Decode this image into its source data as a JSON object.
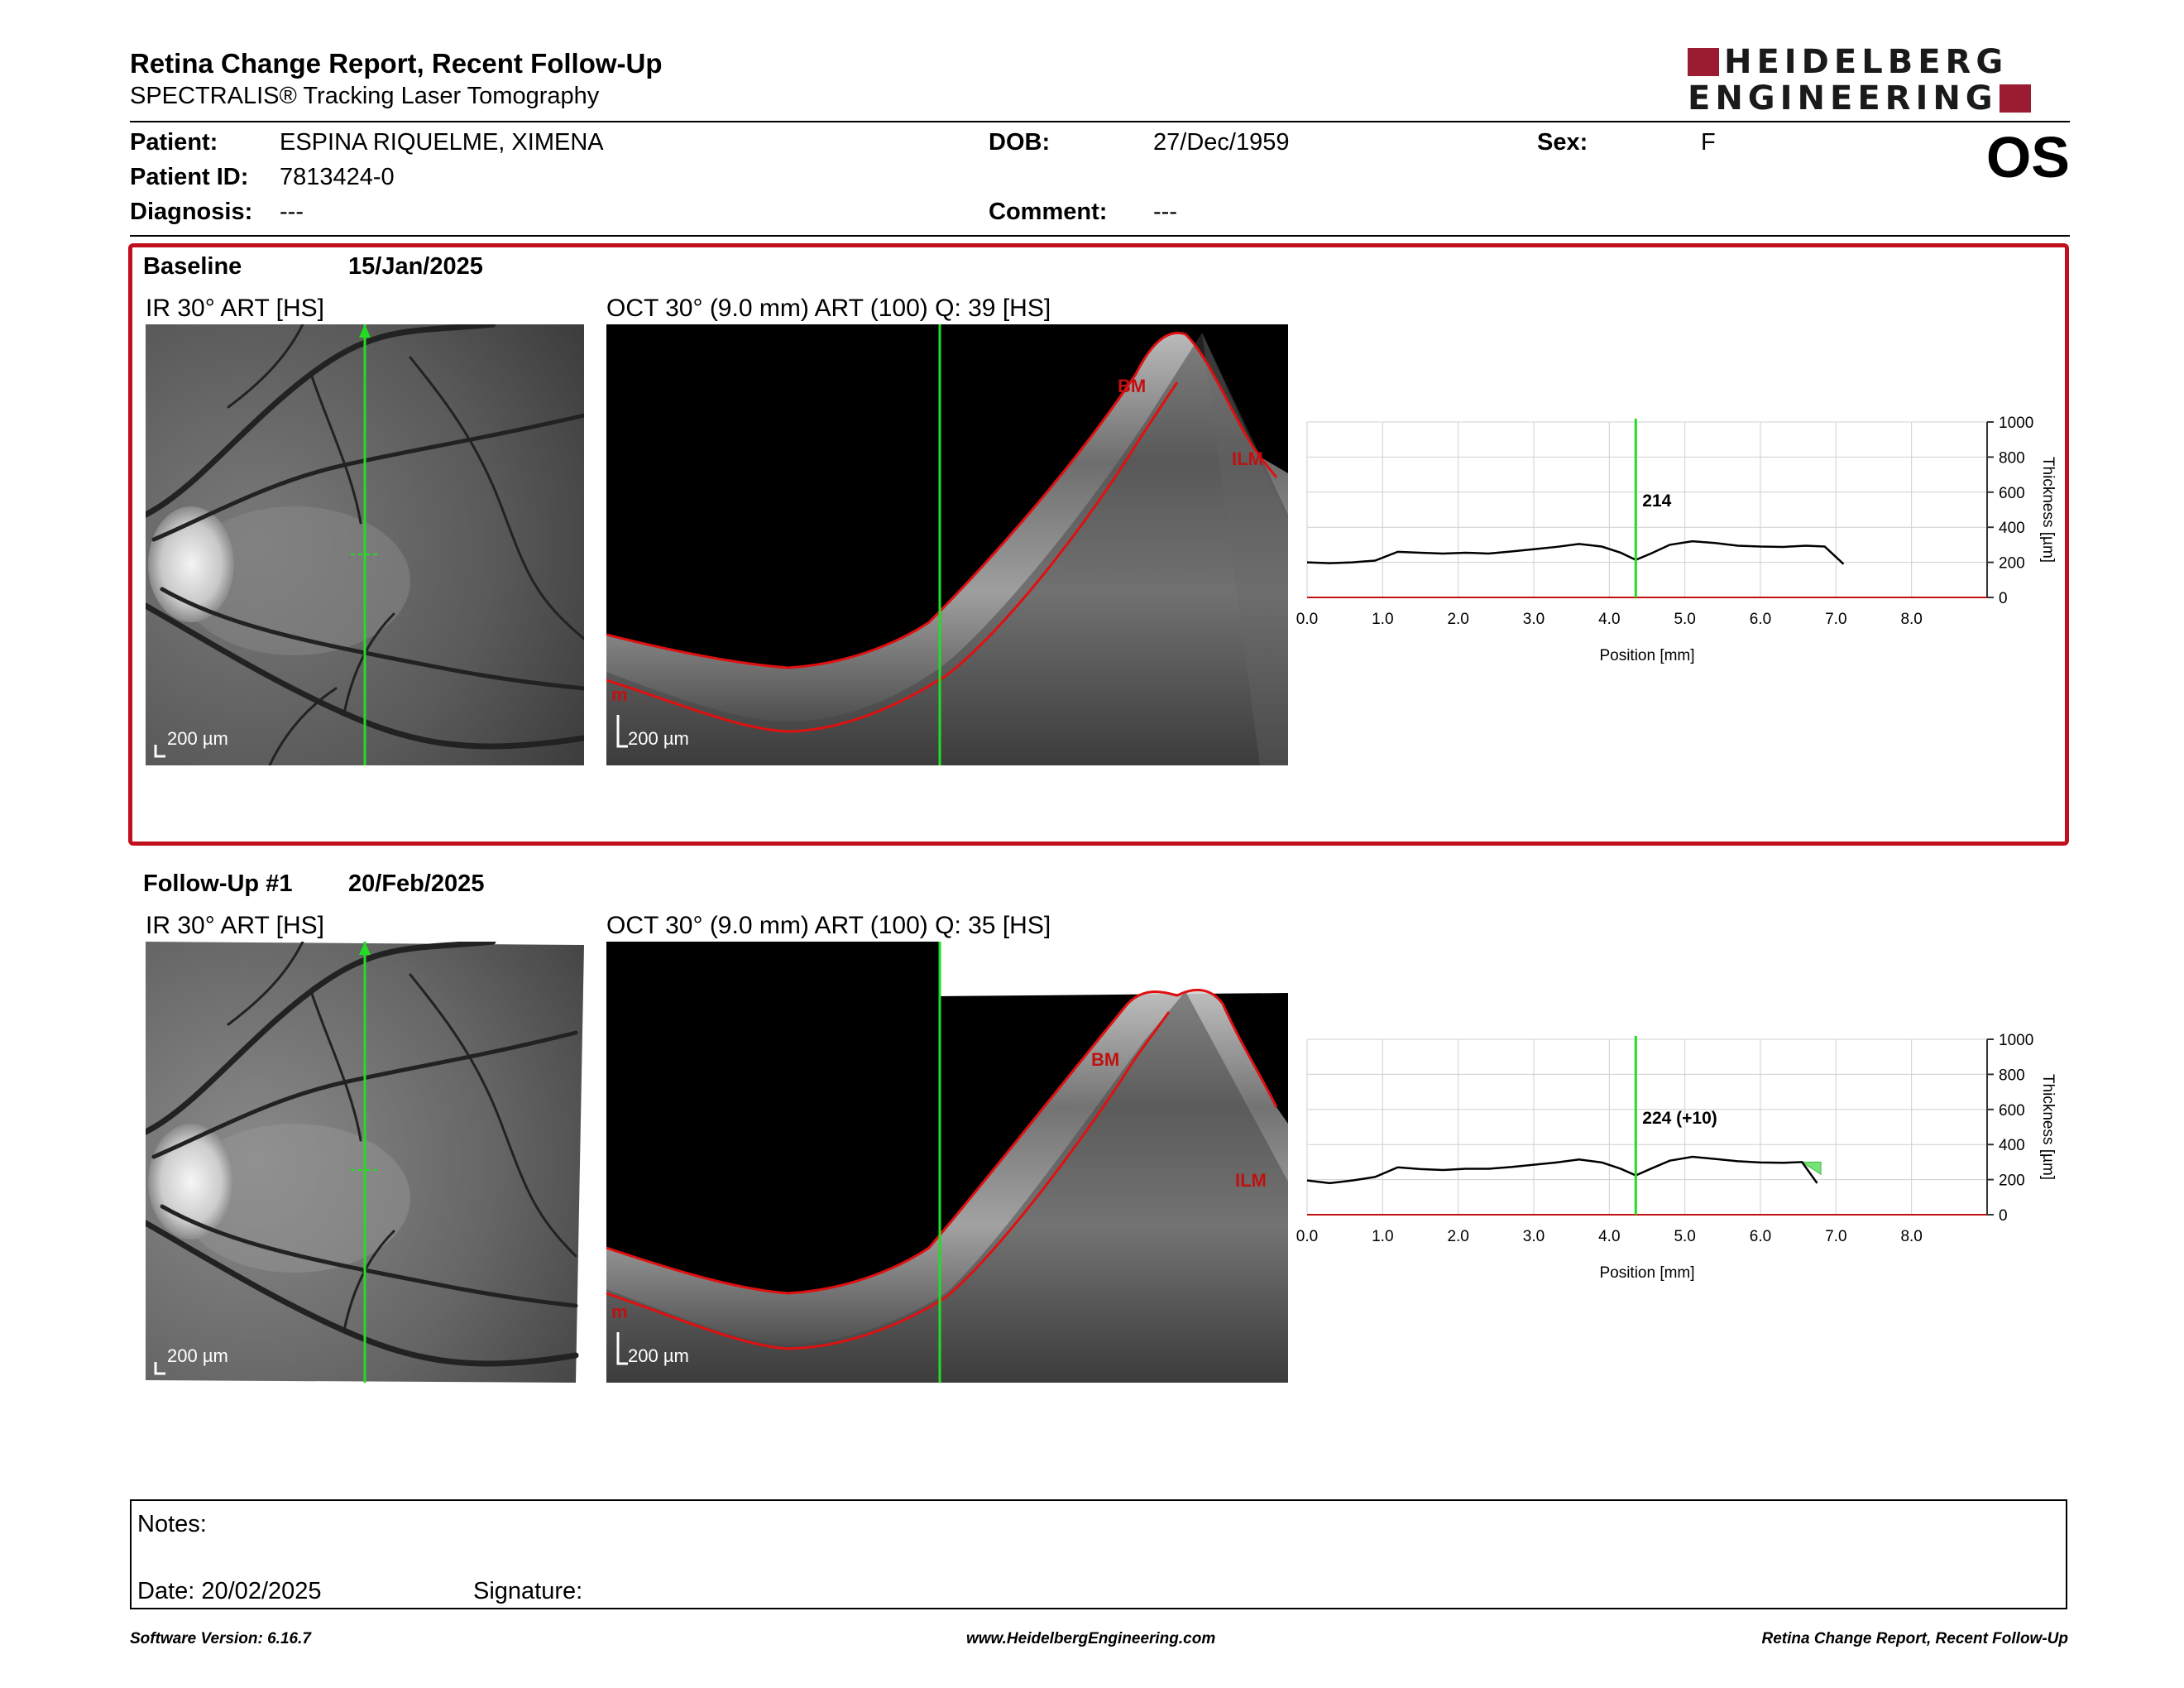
{
  "header": {
    "title": "Retina Change Report, Recent Follow-Up",
    "subtitle": "SPECTRALIS® Tracking Laser Tomography",
    "logo_line1": "HEIDELBERG",
    "logo_line2": "ENGINEERING",
    "eye": "OS"
  },
  "patient": {
    "patient_label": "Patient:",
    "patient_value": "ESPINA RIQUELME, XIMENA",
    "id_label": "Patient ID:",
    "id_value": "7813424-0",
    "diagnosis_label": "Diagnosis:",
    "diagnosis_value": "---",
    "dob_label": "DOB:",
    "dob_value": "27/Dec/1959",
    "comment_label": "Comment:",
    "comment_value": "---",
    "sex_label": "Sex:",
    "sex_value": "F"
  },
  "colors": {
    "frame_red": "#c0101e",
    "scan_line_green": "#22dd22",
    "segmentation_red": "#e01010",
    "logo_red": "#9b1b30"
  },
  "exams": [
    {
      "label": "Baseline",
      "date": "15/Jan/2025",
      "ir_caption": "IR 30° ART [HS]",
      "oct_caption": "OCT 30° (9.0 mm) ART (100) Q: 39 [HS]",
      "scale_ir": "200 µm",
      "scale_oct": "200 µm",
      "seg_labels": [
        "BM",
        "ILM"
      ],
      "seg_partial": "m",
      "marker_value": "214"
    },
    {
      "label": "Follow-Up #1",
      "date": "20/Feb/2025",
      "ir_caption": "IR 30° ART [HS]",
      "oct_caption": "OCT 30° (9.0 mm) ART (100) Q: 35 [HS]",
      "scale_ir": "200 µm",
      "scale_oct": "200 µm",
      "seg_labels": [
        "BM",
        "ILM"
      ],
      "seg_partial": "m",
      "marker_value": "224 (+10)"
    }
  ],
  "chart_data": [
    {
      "type": "line",
      "xlabel": "Position [mm]",
      "ylabel": "Thickness [µm]",
      "xlim": [
        0,
        9
      ],
      "ylim": [
        0,
        1000
      ],
      "x_ticks": [
        "0.0",
        "1.0",
        "2.0",
        "3.0",
        "4.0",
        "5.0",
        "6.0",
        "7.0",
        "8.0"
      ],
      "y_ticks": [
        "0",
        "200",
        "400",
        "600",
        "800",
        "1000"
      ],
      "grid": true,
      "marker_x": 4.35,
      "marker_label": "214",
      "series": [
        {
          "values": [
            [
              0.0,
              200
            ],
            [
              0.3,
              195
            ],
            [
              0.6,
              200
            ],
            [
              0.9,
              210
            ],
            [
              1.2,
              260
            ],
            [
              1.5,
              255
            ],
            [
              1.8,
              250
            ],
            [
              2.1,
              255
            ],
            [
              2.4,
              250
            ],
            [
              2.7,
              262
            ],
            [
              3.0,
              275
            ],
            [
              3.3,
              288
            ],
            [
              3.6,
              305
            ],
            [
              3.9,
              290
            ],
            [
              4.15,
              255
            ],
            [
              4.35,
              214
            ],
            [
              4.55,
              250
            ],
            [
              4.8,
              300
            ],
            [
              5.1,
              320
            ],
            [
              5.4,
              310
            ],
            [
              5.7,
              295
            ],
            [
              6.0,
              290
            ],
            [
              6.3,
              288
            ],
            [
              6.6,
              295
            ],
            [
              6.85,
              290
            ],
            [
              7.1,
              190
            ]
          ]
        }
      ]
    },
    {
      "type": "line",
      "xlabel": "Position [mm]",
      "ylabel": "Thickness [µm]",
      "xlim": [
        0,
        9
      ],
      "ylim": [
        0,
        1000
      ],
      "x_ticks": [
        "0.0",
        "1.0",
        "2.0",
        "3.0",
        "4.0",
        "5.0",
        "6.0",
        "7.0",
        "8.0"
      ],
      "y_ticks": [
        "0",
        "200",
        "400",
        "600",
        "800",
        "1000"
      ],
      "grid": true,
      "marker_x": 4.35,
      "marker_label": "224 (+10)",
      "series": [
        {
          "values": [
            [
              0.0,
              195
            ],
            [
              0.3,
              180
            ],
            [
              0.6,
              195
            ],
            [
              0.9,
              215
            ],
            [
              1.2,
              270
            ],
            [
              1.5,
              260
            ],
            [
              1.8,
              255
            ],
            [
              2.1,
              262
            ],
            [
              2.4,
              262
            ],
            [
              2.7,
              272
            ],
            [
              3.0,
              285
            ],
            [
              3.3,
              298
            ],
            [
              3.6,
              315
            ],
            [
              3.9,
              298
            ],
            [
              4.15,
              262
            ],
            [
              4.35,
              224
            ],
            [
              4.55,
              262
            ],
            [
              4.8,
              308
            ],
            [
              5.1,
              330
            ],
            [
              5.4,
              318
            ],
            [
              5.7,
              305
            ],
            [
              6.0,
              298
            ],
            [
              6.3,
              296
            ],
            [
              6.55,
              300
            ],
            [
              6.75,
              180
            ]
          ]
        }
      ],
      "difference_fill": [
        [
          6.55,
          300
        ],
        [
          6.8,
          300
        ],
        [
          6.8,
          230
        ]
      ]
    }
  ],
  "notes": {
    "notes_label": "Notes:",
    "date_label": "Date: 20/02/2025",
    "signature_label": "Signature:"
  },
  "footer": {
    "software": "Software Version: 6.16.7",
    "website": "www.HeidelbergEngineering.com",
    "report_name": "Retina Change Report, Recent Follow-Up"
  }
}
